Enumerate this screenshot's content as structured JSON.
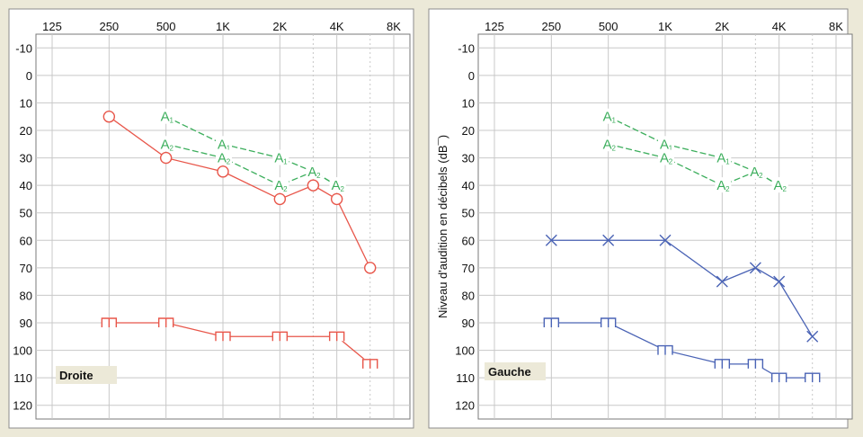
{
  "chart_data": [
    {
      "type": "line",
      "title": "",
      "panel_label": "Droite",
      "ylabel": "",
      "y_reversed": true,
      "ylim": [
        -15,
        125
      ],
      "x_ticks": [
        "125",
        "250",
        "500",
        "1K",
        "2K",
        "4K",
        "8K"
      ],
      "y_ticks": [
        "-10",
        "0",
        "10",
        "20",
        "30",
        "40",
        "50",
        "60",
        "70",
        "80",
        "90",
        "100",
        "110",
        "120"
      ],
      "grid": true,
      "colors": {
        "air": "#e8564a",
        "masked": "#3cae5c"
      },
      "series": [
        {
          "symbol": "O",
          "color": "#e8564a",
          "points": [
            {
              "x": "250",
              "y": 15
            },
            {
              "x": "500",
              "y": 30
            },
            {
              "x": "1K",
              "y": 35
            },
            {
              "x": "2K",
              "y": 45
            },
            {
              "x": "3K",
              "y": 40
            },
            {
              "x": "4K",
              "y": 45
            },
            {
              "x": "6K",
              "y": 70
            }
          ]
        },
        {
          "symbol": "[",
          "color": "#e8564a",
          "points": [
            {
              "x": "250",
              "y": 90
            },
            {
              "x": "500",
              "y": 90
            },
            {
              "x": "1K",
              "y": 95
            },
            {
              "x": "2K",
              "y": 95
            },
            {
              "x": "4K",
              "y": 95
            },
            {
              "x": "6K",
              "y": 105
            }
          ]
        },
        {
          "symbol": "A1",
          "color": "#3cae5c",
          "points": [
            {
              "x": "500",
              "y": 15
            },
            {
              "x": "1K",
              "y": 25
            },
            {
              "x": "2K",
              "y": 30
            },
            {
              "x": "3K",
              "y": 35
            },
            {
              "x": "4K",
              "y": 40
            }
          ]
        },
        {
          "symbol": "A2",
          "color": "#3cae5c",
          "points": [
            {
              "x": "500",
              "y": 25
            },
            {
              "x": "1K",
              "y": 30
            },
            {
              "x": "2K",
              "y": 40
            },
            {
              "x": "3K",
              "y": 35
            },
            {
              "x": "4K",
              "y": 40
            }
          ]
        }
      ]
    },
    {
      "type": "line",
      "title": "",
      "panel_label": "Gauche",
      "ylabel": "Niveau d'audition en décibels (dB¯)",
      "y_reversed": true,
      "ylim": [
        -15,
        125
      ],
      "x_ticks": [
        "125",
        "250",
        "500",
        "1K",
        "2K",
        "4K",
        "8K"
      ],
      "y_ticks": [
        "-10",
        "0",
        "10",
        "20",
        "30",
        "40",
        "50",
        "60",
        "70",
        "80",
        "90",
        "100",
        "110",
        "120"
      ],
      "grid": true,
      "colors": {
        "air": "#4a63b5",
        "masked": "#3cae5c"
      },
      "series": [
        {
          "symbol": "X",
          "color": "#4a63b5",
          "points": [
            {
              "x": "250",
              "y": 60
            },
            {
              "x": "500",
              "y": 60
            },
            {
              "x": "1K",
              "y": 60
            },
            {
              "x": "2K",
              "y": 75
            },
            {
              "x": "3K",
              "y": 70
            },
            {
              "x": "4K",
              "y": 75
            },
            {
              "x": "6K",
              "y": 95
            }
          ]
        },
        {
          "symbol": "]",
          "color": "#4a63b5",
          "points": [
            {
              "x": "250",
              "y": 90
            },
            {
              "x": "500",
              "y": 90
            },
            {
              "x": "1K",
              "y": 100
            },
            {
              "x": "2K",
              "y": 105
            },
            {
              "x": "3K",
              "y": 105
            },
            {
              "x": "4K",
              "y": 110
            },
            {
              "x": "6K",
              "y": 110
            }
          ]
        },
        {
          "symbol": "A1",
          "color": "#3cae5c",
          "points": [
            {
              "x": "500",
              "y": 15
            },
            {
              "x": "1K",
              "y": 25
            },
            {
              "x": "2K",
              "y": 30
            },
            {
              "x": "3K",
              "y": 35
            },
            {
              "x": "4K",
              "y": 40
            }
          ]
        },
        {
          "symbol": "A2",
          "color": "#3cae5c",
          "points": [
            {
              "x": "500",
              "y": 25
            },
            {
              "x": "1K",
              "y": 30
            },
            {
              "x": "2K",
              "y": 40
            },
            {
              "x": "3K",
              "y": 35
            },
            {
              "x": "4K",
              "y": 40
            }
          ]
        }
      ]
    }
  ]
}
